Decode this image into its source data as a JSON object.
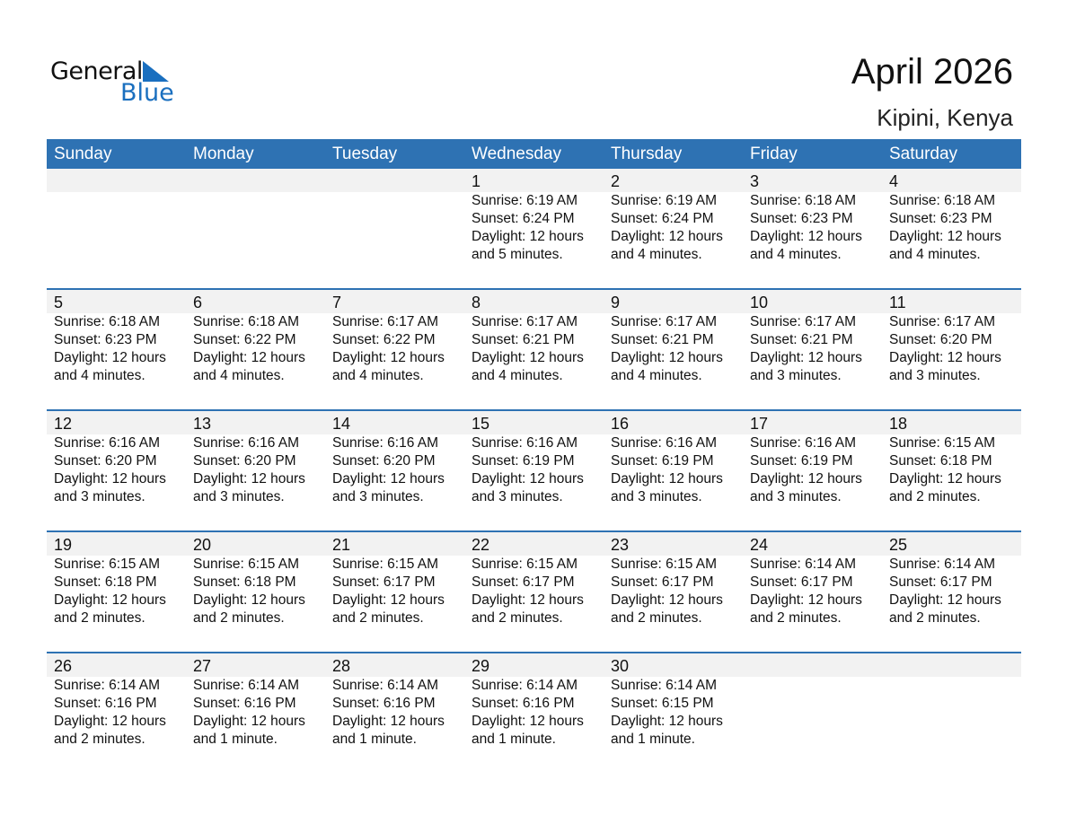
{
  "logo": {
    "general": "General",
    "blue": "Blue"
  },
  "header": {
    "title": "April 2026",
    "location": "Kipini, Kenya"
  },
  "colors": {
    "accent": "#2e72b3",
    "band": "#f2f2f2"
  },
  "weekdays": [
    "Sunday",
    "Monday",
    "Tuesday",
    "Wednesday",
    "Thursday",
    "Friday",
    "Saturday"
  ],
  "weeks": [
    [
      null,
      null,
      null,
      {
        "day": "1",
        "sunrise": "Sunrise: 6:19 AM",
        "sunset": "Sunset: 6:24 PM",
        "daylight": "Daylight: 12 hours",
        "minutes": "and 5 minutes."
      },
      {
        "day": "2",
        "sunrise": "Sunrise: 6:19 AM",
        "sunset": "Sunset: 6:24 PM",
        "daylight": "Daylight: 12 hours",
        "minutes": "and 4 minutes."
      },
      {
        "day": "3",
        "sunrise": "Sunrise: 6:18 AM",
        "sunset": "Sunset: 6:23 PM",
        "daylight": "Daylight: 12 hours",
        "minutes": "and 4 minutes."
      },
      {
        "day": "4",
        "sunrise": "Sunrise: 6:18 AM",
        "sunset": "Sunset: 6:23 PM",
        "daylight": "Daylight: 12 hours",
        "minutes": "and 4 minutes."
      }
    ],
    [
      {
        "day": "5",
        "sunrise": "Sunrise: 6:18 AM",
        "sunset": "Sunset: 6:23 PM",
        "daylight": "Daylight: 12 hours",
        "minutes": "and 4 minutes."
      },
      {
        "day": "6",
        "sunrise": "Sunrise: 6:18 AM",
        "sunset": "Sunset: 6:22 PM",
        "daylight": "Daylight: 12 hours",
        "minutes": "and 4 minutes."
      },
      {
        "day": "7",
        "sunrise": "Sunrise: 6:17 AM",
        "sunset": "Sunset: 6:22 PM",
        "daylight": "Daylight: 12 hours",
        "minutes": "and 4 minutes."
      },
      {
        "day": "8",
        "sunrise": "Sunrise: 6:17 AM",
        "sunset": "Sunset: 6:21 PM",
        "daylight": "Daylight: 12 hours",
        "minutes": "and 4 minutes."
      },
      {
        "day": "9",
        "sunrise": "Sunrise: 6:17 AM",
        "sunset": "Sunset: 6:21 PM",
        "daylight": "Daylight: 12 hours",
        "minutes": "and 4 minutes."
      },
      {
        "day": "10",
        "sunrise": "Sunrise: 6:17 AM",
        "sunset": "Sunset: 6:21 PM",
        "daylight": "Daylight: 12 hours",
        "minutes": "and 3 minutes."
      },
      {
        "day": "11",
        "sunrise": "Sunrise: 6:17 AM",
        "sunset": "Sunset: 6:20 PM",
        "daylight": "Daylight: 12 hours",
        "minutes": "and 3 minutes."
      }
    ],
    [
      {
        "day": "12",
        "sunrise": "Sunrise: 6:16 AM",
        "sunset": "Sunset: 6:20 PM",
        "daylight": "Daylight: 12 hours",
        "minutes": "and 3 minutes."
      },
      {
        "day": "13",
        "sunrise": "Sunrise: 6:16 AM",
        "sunset": "Sunset: 6:20 PM",
        "daylight": "Daylight: 12 hours",
        "minutes": "and 3 minutes."
      },
      {
        "day": "14",
        "sunrise": "Sunrise: 6:16 AM",
        "sunset": "Sunset: 6:20 PM",
        "daylight": "Daylight: 12 hours",
        "minutes": "and 3 minutes."
      },
      {
        "day": "15",
        "sunrise": "Sunrise: 6:16 AM",
        "sunset": "Sunset: 6:19 PM",
        "daylight": "Daylight: 12 hours",
        "minutes": "and 3 minutes."
      },
      {
        "day": "16",
        "sunrise": "Sunrise: 6:16 AM",
        "sunset": "Sunset: 6:19 PM",
        "daylight": "Daylight: 12 hours",
        "minutes": "and 3 minutes."
      },
      {
        "day": "17",
        "sunrise": "Sunrise: 6:16 AM",
        "sunset": "Sunset: 6:19 PM",
        "daylight": "Daylight: 12 hours",
        "minutes": "and 3 minutes."
      },
      {
        "day": "18",
        "sunrise": "Sunrise: 6:15 AM",
        "sunset": "Sunset: 6:18 PM",
        "daylight": "Daylight: 12 hours",
        "minutes": "and 2 minutes."
      }
    ],
    [
      {
        "day": "19",
        "sunrise": "Sunrise: 6:15 AM",
        "sunset": "Sunset: 6:18 PM",
        "daylight": "Daylight: 12 hours",
        "minutes": "and 2 minutes."
      },
      {
        "day": "20",
        "sunrise": "Sunrise: 6:15 AM",
        "sunset": "Sunset: 6:18 PM",
        "daylight": "Daylight: 12 hours",
        "minutes": "and 2 minutes."
      },
      {
        "day": "21",
        "sunrise": "Sunrise: 6:15 AM",
        "sunset": "Sunset: 6:17 PM",
        "daylight": "Daylight: 12 hours",
        "minutes": "and 2 minutes."
      },
      {
        "day": "22",
        "sunrise": "Sunrise: 6:15 AM",
        "sunset": "Sunset: 6:17 PM",
        "daylight": "Daylight: 12 hours",
        "minutes": "and 2 minutes."
      },
      {
        "day": "23",
        "sunrise": "Sunrise: 6:15 AM",
        "sunset": "Sunset: 6:17 PM",
        "daylight": "Daylight: 12 hours",
        "minutes": "and 2 minutes."
      },
      {
        "day": "24",
        "sunrise": "Sunrise: 6:14 AM",
        "sunset": "Sunset: 6:17 PM",
        "daylight": "Daylight: 12 hours",
        "minutes": "and 2 minutes."
      },
      {
        "day": "25",
        "sunrise": "Sunrise: 6:14 AM",
        "sunset": "Sunset: 6:17 PM",
        "daylight": "Daylight: 12 hours",
        "minutes": "and 2 minutes."
      }
    ],
    [
      {
        "day": "26",
        "sunrise": "Sunrise: 6:14 AM",
        "sunset": "Sunset: 6:16 PM",
        "daylight": "Daylight: 12 hours",
        "minutes": "and 2 minutes."
      },
      {
        "day": "27",
        "sunrise": "Sunrise: 6:14 AM",
        "sunset": "Sunset: 6:16 PM",
        "daylight": "Daylight: 12 hours",
        "minutes": "and 1 minute."
      },
      {
        "day": "28",
        "sunrise": "Sunrise: 6:14 AM",
        "sunset": "Sunset: 6:16 PM",
        "daylight": "Daylight: 12 hours",
        "minutes": "and 1 minute."
      },
      {
        "day": "29",
        "sunrise": "Sunrise: 6:14 AM",
        "sunset": "Sunset: 6:16 PM",
        "daylight": "Daylight: 12 hours",
        "minutes": "and 1 minute."
      },
      {
        "day": "30",
        "sunrise": "Sunrise: 6:14 AM",
        "sunset": "Sunset: 6:15 PM",
        "daylight": "Daylight: 12 hours",
        "minutes": "and 1 minute."
      },
      null,
      null
    ]
  ]
}
